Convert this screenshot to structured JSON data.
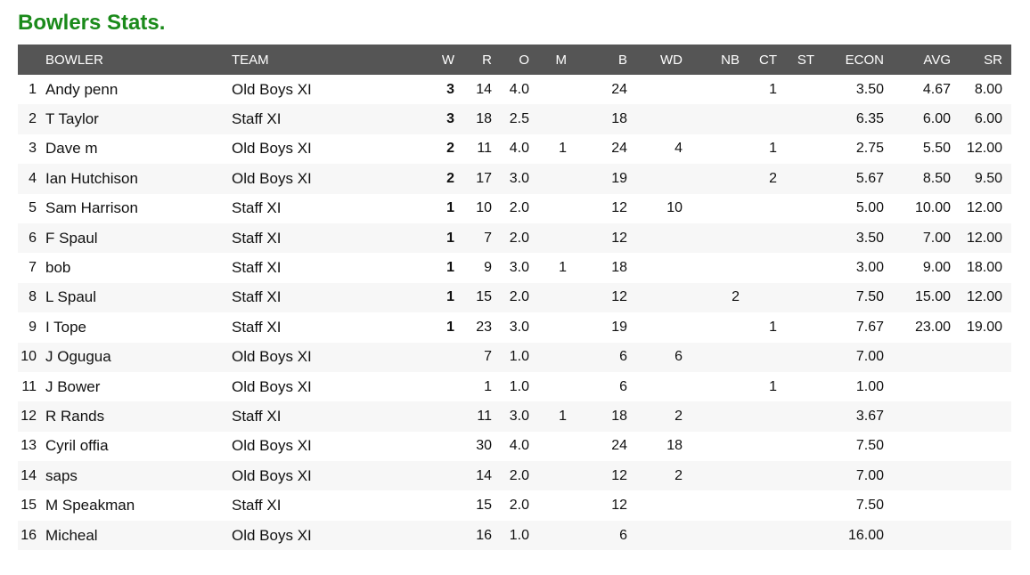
{
  "title": "Bowlers Stats.",
  "columns": {
    "rank": "",
    "bowler": "BOWLER",
    "team": "TEAM",
    "w": "W",
    "r": "R",
    "o": "O",
    "m": "M",
    "b": "B",
    "wd": "WD",
    "nb": "NB",
    "ct": "CT",
    "st": "ST",
    "econ": "ECON",
    "avg": "AVG",
    "sr": "SR"
  },
  "rows": [
    {
      "rank": "1",
      "bowler": "Andy penn",
      "team": "Old Boys XI",
      "w": "3",
      "r": "14",
      "o": "4.0",
      "m": "",
      "b": "24",
      "wd": "",
      "nb": "",
      "ct": "1",
      "st": "",
      "econ": "3.50",
      "avg": "4.67",
      "sr": "8.00"
    },
    {
      "rank": "2",
      "bowler": "T Taylor",
      "team": "Staff XI",
      "w": "3",
      "r": "18",
      "o": "2.5",
      "m": "",
      "b": "18",
      "wd": "",
      "nb": "",
      "ct": "",
      "st": "",
      "econ": "6.35",
      "avg": "6.00",
      "sr": "6.00"
    },
    {
      "rank": "3",
      "bowler": "Dave m",
      "team": "Old Boys XI",
      "w": "2",
      "r": "11",
      "o": "4.0",
      "m": "1",
      "b": "24",
      "wd": "4",
      "nb": "",
      "ct": "1",
      "st": "",
      "econ": "2.75",
      "avg": "5.50",
      "sr": "12.00"
    },
    {
      "rank": "4",
      "bowler": "Ian Hutchison",
      "team": "Old Boys XI",
      "w": "2",
      "r": "17",
      "o": "3.0",
      "m": "",
      "b": "19",
      "wd": "",
      "nb": "",
      "ct": "2",
      "st": "",
      "econ": "5.67",
      "avg": "8.50",
      "sr": "9.50"
    },
    {
      "rank": "5",
      "bowler": "Sam Harrison",
      "team": "Staff XI",
      "w": "1",
      "r": "10",
      "o": "2.0",
      "m": "",
      "b": "12",
      "wd": "10",
      "nb": "",
      "ct": "",
      "st": "",
      "econ": "5.00",
      "avg": "10.00",
      "sr": "12.00"
    },
    {
      "rank": "6",
      "bowler": "F Spaul",
      "team": "Staff XI",
      "w": "1",
      "r": "7",
      "o": "2.0",
      "m": "",
      "b": "12",
      "wd": "",
      "nb": "",
      "ct": "",
      "st": "",
      "econ": "3.50",
      "avg": "7.00",
      "sr": "12.00"
    },
    {
      "rank": "7",
      "bowler": "bob",
      "team": "Staff XI",
      "w": "1",
      "r": "9",
      "o": "3.0",
      "m": "1",
      "b": "18",
      "wd": "",
      "nb": "",
      "ct": "",
      "st": "",
      "econ": "3.00",
      "avg": "9.00",
      "sr": "18.00"
    },
    {
      "rank": "8",
      "bowler": "L Spaul",
      "team": "Staff XI",
      "w": "1",
      "r": "15",
      "o": "2.0",
      "m": "",
      "b": "12",
      "wd": "",
      "nb": "2",
      "ct": "",
      "st": "",
      "econ": "7.50",
      "avg": "15.00",
      "sr": "12.00"
    },
    {
      "rank": "9",
      "bowler": "I Tope",
      "team": "Staff XI",
      "w": "1",
      "r": "23",
      "o": "3.0",
      "m": "",
      "b": "19",
      "wd": "",
      "nb": "",
      "ct": "1",
      "st": "",
      "econ": "7.67",
      "avg": "23.00",
      "sr": "19.00"
    },
    {
      "rank": "10",
      "bowler": "J Ogugua",
      "team": "Old Boys XI",
      "w": "",
      "r": "7",
      "o": "1.0",
      "m": "",
      "b": "6",
      "wd": "6",
      "nb": "",
      "ct": "",
      "st": "",
      "econ": "7.00",
      "avg": "",
      "sr": ""
    },
    {
      "rank": "11",
      "bowler": "J Bower",
      "team": "Old Boys XI",
      "w": "",
      "r": "1",
      "o": "1.0",
      "m": "",
      "b": "6",
      "wd": "",
      "nb": "",
      "ct": "1",
      "st": "",
      "econ": "1.00",
      "avg": "",
      "sr": ""
    },
    {
      "rank": "12",
      "bowler": "R Rands",
      "team": "Staff XI",
      "w": "",
      "r": "11",
      "o": "3.0",
      "m": "1",
      "b": "18",
      "wd": "2",
      "nb": "",
      "ct": "",
      "st": "",
      "econ": "3.67",
      "avg": "",
      "sr": ""
    },
    {
      "rank": "13",
      "bowler": "Cyril offia",
      "team": "Old Boys XI",
      "w": "",
      "r": "30",
      "o": "4.0",
      "m": "",
      "b": "24",
      "wd": "18",
      "nb": "",
      "ct": "",
      "st": "",
      "econ": "7.50",
      "avg": "",
      "sr": ""
    },
    {
      "rank": "14",
      "bowler": "saps",
      "team": "Old Boys XI",
      "w": "",
      "r": "14",
      "o": "2.0",
      "m": "",
      "b": "12",
      "wd": "2",
      "nb": "",
      "ct": "",
      "st": "",
      "econ": "7.00",
      "avg": "",
      "sr": ""
    },
    {
      "rank": "15",
      "bowler": "M Speakman",
      "team": "Staff XI",
      "w": "",
      "r": "15",
      "o": "2.0",
      "m": "",
      "b": "12",
      "wd": "",
      "nb": "",
      "ct": "",
      "st": "",
      "econ": "7.50",
      "avg": "",
      "sr": ""
    },
    {
      "rank": "16",
      "bowler": "Micheal",
      "team": "Old Boys XI",
      "w": "",
      "r": "16",
      "o": "1.0",
      "m": "",
      "b": "6",
      "wd": "",
      "nb": "",
      "ct": "",
      "st": "",
      "econ": "16.00",
      "avg": "",
      "sr": ""
    }
  ],
  "colors": {
    "title": "#1a8a1a",
    "header_bg": "#555555",
    "header_text": "#ffffff",
    "row_alt": "#f7f7f7"
  }
}
